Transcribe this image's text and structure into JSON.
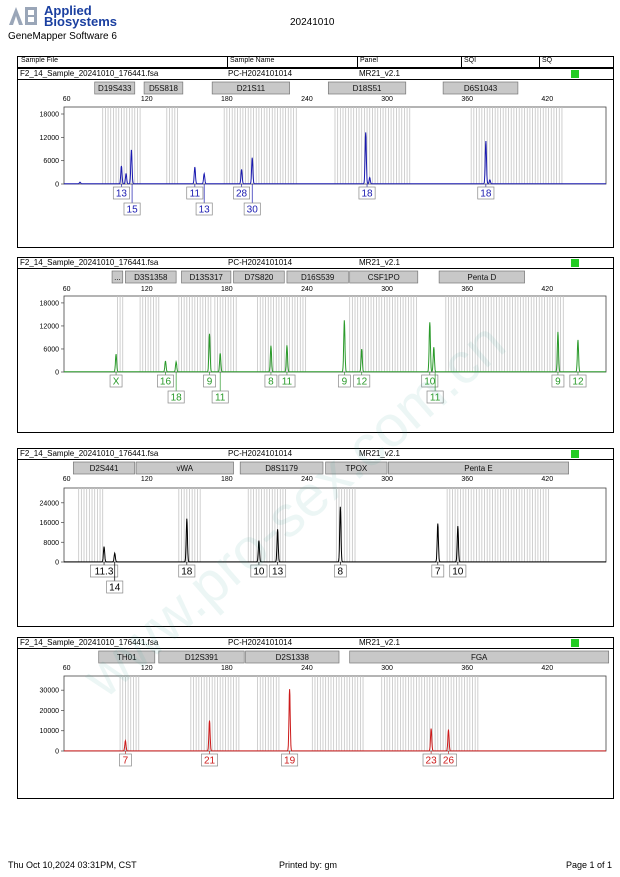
{
  "header": {
    "brand_abbrev": "AB",
    "brand_line1": "Applied",
    "brand_line2": "Biosystems",
    "software": "GeneMapper Software 6",
    "run_date": "20241010"
  },
  "columns": [
    "Sample File",
    "Sample Name",
    "Panel",
    "SQI",
    "SQ"
  ],
  "footer": {
    "printed_at": "Thu Oct 10,2024 03:31PM, CST",
    "printed_by": "Printed by: gm",
    "page": "Page 1 of 1"
  },
  "watermark": "www.pro-sex.com.cn",
  "chart_data": [
    {
      "type": "line",
      "title": "",
      "sample_file": "F2_14_Sample_20241010_176441.fsa",
      "sample_name": "PC-H2024101014",
      "panel": "MR21_v2.1",
      "color": "#1a1ab0",
      "quality_color": "#22cc22",
      "x_ticks": [
        60,
        120,
        180,
        240,
        300,
        360,
        420
      ],
      "x_range": [
        58,
        464
      ],
      "y_ticks": [
        0,
        6000,
        12000,
        18000
      ],
      "y_range": [
        0,
        19800
      ],
      "markers": [
        {
          "name": "D19S433",
          "start": 81,
          "end": 111
        },
        {
          "name": "D5S818",
          "start": 118,
          "end": 147
        },
        {
          "name": "D21S11",
          "start": 169,
          "end": 227
        },
        {
          "name": "D18S51",
          "start": 256,
          "end": 314
        },
        {
          "name": "D6S1043",
          "start": 342,
          "end": 398
        }
      ],
      "bins": [
        [
          87,
          115
        ],
        [
          135,
          144
        ],
        [
          178,
          232
        ],
        [
          261,
          318
        ],
        [
          363,
          432
        ]
      ],
      "peaks": [
        [
          101,
          4600
        ],
        [
          104.5,
          2600
        ],
        [
          108.5,
          8800
        ],
        [
          156,
          4300
        ],
        [
          163,
          2600
        ],
        [
          191,
          3700
        ],
        [
          199,
          6700
        ],
        [
          70,
          400
        ],
        [
          284,
          13200
        ],
        [
          287,
          1600
        ],
        [
          374,
          11000
        ],
        [
          377,
          1000
        ]
      ],
      "alleles": [
        {
          "label": "13",
          "x": 101,
          "row": 1
        },
        {
          "label": "15",
          "x": 109,
          "row": 2
        },
        {
          "label": "11",
          "x": 156,
          "row": 1
        },
        {
          "label": "13",
          "x": 163,
          "row": 2
        },
        {
          "label": "28",
          "x": 191,
          "row": 1
        },
        {
          "label": "30",
          "x": 199,
          "row": 2
        },
        {
          "label": "18",
          "x": 285,
          "row": 1
        },
        {
          "label": "18",
          "x": 374,
          "row": 1
        }
      ]
    },
    {
      "type": "line",
      "title": "",
      "sample_file": "F2_14_Sample_20241010_176441.fsa",
      "sample_name": "PC-H2024101014",
      "panel": "MR21_v2.1",
      "color": "#2a9a2a",
      "quality_color": "#22cc22",
      "x_ticks": [
        60,
        120,
        180,
        240,
        300,
        360,
        420
      ],
      "x_range": [
        58,
        464
      ],
      "y_ticks": [
        0,
        6000,
        12000,
        18000
      ],
      "y_range": [
        0,
        19800
      ],
      "markers": [
        {
          "name": "...",
          "start": 94,
          "end": 102
        },
        {
          "name": "D3S1358",
          "start": 104,
          "end": 142
        },
        {
          "name": "D13S317",
          "start": 146,
          "end": 183
        },
        {
          "name": "D7S820",
          "start": 185,
          "end": 223
        },
        {
          "name": "D16S539",
          "start": 225,
          "end": 271
        },
        {
          "name": "CSF1PO",
          "start": 272,
          "end": 323
        },
        {
          "name": "Penta D",
          "start": 339,
          "end": 403
        }
      ],
      "bins": [
        [
          98,
          103
        ],
        [
          115,
          129
        ],
        [
          144,
          168
        ],
        [
          171,
          188
        ],
        [
          203,
          239
        ],
        [
          272,
          322
        ],
        [
          344,
          432
        ]
      ],
      "peaks": [
        [
          97,
          4600
        ],
        [
          134,
          2800
        ],
        [
          142,
          2600
        ],
        [
          167,
          9900
        ],
        [
          175,
          4800
        ],
        [
          213,
          6800
        ],
        [
          225,
          6900
        ],
        [
          268,
          13400
        ],
        [
          281,
          5900
        ],
        [
          332,
          12900
        ],
        [
          335,
          6400
        ],
        [
          428,
          10400
        ],
        [
          443,
          8300
        ]
      ],
      "alleles": [
        {
          "label": "X",
          "x": 97,
          "row": 1
        },
        {
          "label": "16",
          "x": 134,
          "row": 1
        },
        {
          "label": "18",
          "x": 142,
          "row": 2
        },
        {
          "label": "9",
          "x": 167,
          "row": 1
        },
        {
          "label": "11",
          "x": 175,
          "row": 2
        },
        {
          "label": "8",
          "x": 213,
          "row": 1
        },
        {
          "label": "11",
          "x": 225,
          "row": 1
        },
        {
          "label": "9",
          "x": 268,
          "row": 1
        },
        {
          "label": "12",
          "x": 281,
          "row": 1
        },
        {
          "label": "10",
          "x": 332,
          "row": 1
        },
        {
          "label": "11",
          "x": 336,
          "row": 2
        },
        {
          "label": "9",
          "x": 428,
          "row": 1
        },
        {
          "label": "12",
          "x": 443,
          "row": 1
        }
      ]
    },
    {
      "type": "line",
      "title": "",
      "sample_file": "F2_14_Sample_20241010_176441.fsa",
      "sample_name": "PC-H2024101014",
      "panel": "MR21_v2.1",
      "color": "#000000",
      "quality_color": "#22cc22",
      "x_ticks": [
        60,
        120,
        180,
        240,
        300,
        360,
        420
      ],
      "x_range": [
        58,
        464
      ],
      "y_ticks": [
        0,
        8000,
        16000,
        24000
      ],
      "y_range": [
        0,
        30000
      ],
      "markers": [
        {
          "name": "D2S441",
          "start": 65,
          "end": 111
        },
        {
          "name": "vWA",
          "start": 112,
          "end": 185
        },
        {
          "name": "D8S1179",
          "start": 190,
          "end": 252
        },
        {
          "name": "TPOX",
          "start": 254,
          "end": 300
        },
        {
          "name": "Penta E",
          "start": 301,
          "end": 436
        }
      ],
      "bins": [
        [
          69,
          88
        ],
        [
          144,
          161
        ],
        [
          196,
          225
        ],
        [
          262,
          276
        ],
        [
          345,
          421
        ]
      ],
      "peaks": [
        [
          88,
          6200
        ],
        [
          96,
          3500
        ],
        [
          150,
          17500
        ],
        [
          204,
          8600
        ],
        [
          218,
          13200
        ],
        [
          265,
          22300
        ],
        [
          338,
          15500
        ],
        [
          353,
          14500
        ]
      ],
      "alleles": [
        {
          "label": "11.3",
          "x": 88,
          "row": 1
        },
        {
          "label": "14",
          "x": 96,
          "row": 2
        },
        {
          "label": "18",
          "x": 150,
          "row": 1
        },
        {
          "label": "10",
          "x": 204,
          "row": 1
        },
        {
          "label": "13",
          "x": 218,
          "row": 1
        },
        {
          "label": "8",
          "x": 265,
          "row": 1
        },
        {
          "label": "7",
          "x": 338,
          "row": 1
        },
        {
          "label": "10",
          "x": 353,
          "row": 1
        }
      ]
    },
    {
      "type": "line",
      "title": "",
      "sample_file": "F2_14_Sample_20241010_176441.fsa",
      "sample_name": "PC-H2024101014",
      "panel": "MR21_v2.1",
      "color": "#cc1a1a",
      "quality_color": "#22cc22",
      "x_ticks": [
        60,
        120,
        180,
        240,
        300,
        360,
        420
      ],
      "x_range": [
        58,
        464
      ],
      "y_ticks": [
        0,
        10000,
        20000,
        30000
      ],
      "y_range": [
        0,
        37000
      ],
      "markers": [
        {
          "name": "TH01",
          "start": 84,
          "end": 126
        },
        {
          "name": "D12S391",
          "start": 129,
          "end": 193
        },
        {
          "name": "D2S1338",
          "start": 194,
          "end": 264
        },
        {
          "name": "FGA",
          "start": 272,
          "end": 466
        }
      ],
      "bins": [
        [
          100,
          114
        ],
        [
          153,
          189
        ],
        [
          203,
          219
        ],
        [
          244,
          282
        ],
        [
          296,
          368
        ]
      ],
      "peaks": [
        [
          104,
          5000
        ],
        [
          167,
          15000
        ],
        [
          227,
          30500
        ],
        [
          333,
          11000
        ],
        [
          346,
          10500
        ]
      ],
      "alleles": [
        {
          "label": "7",
          "x": 104,
          "row": 1
        },
        {
          "label": "21",
          "x": 167,
          "row": 1
        },
        {
          "label": "19",
          "x": 227,
          "row": 1
        },
        {
          "label": "23",
          "x": 333,
          "row": 1
        },
        {
          "label": "26",
          "x": 346,
          "row": 1
        }
      ]
    }
  ]
}
